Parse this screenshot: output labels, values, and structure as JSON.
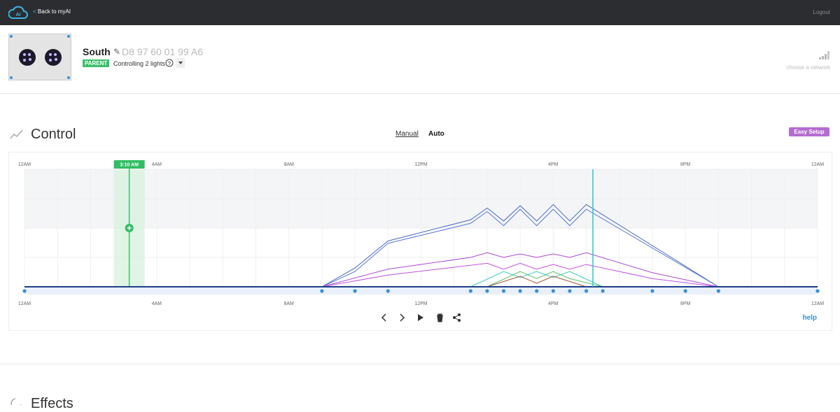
{
  "header": {
    "back": "Back to myAI",
    "logout": "Logout"
  },
  "device": {
    "name": "South",
    "id": "D8 97 60 01 99 A6",
    "badge": "PARENT",
    "status": "Controlling 2 lights",
    "network": "choose a network"
  },
  "control": {
    "title": "Control",
    "modes": [
      "Manual",
      "Auto"
    ],
    "easy_setup": "Easy Setup",
    "help": "help"
  },
  "chart_data": {
    "type": "line",
    "xlim": [
      0,
      24
    ],
    "ylim": [
      0,
      100
    ],
    "xticks": [
      {
        "value": 0,
        "label": "12AM"
      },
      {
        "value": 4,
        "label": "4AM"
      },
      {
        "value": 8,
        "label": "8AM"
      },
      {
        "value": 12,
        "label": "12PM"
      },
      {
        "value": 16,
        "label": "4PM"
      },
      {
        "value": 20,
        "label": "8PM"
      },
      {
        "value": 24,
        "label": "12AM"
      }
    ],
    "yticks": [
      0,
      25,
      50,
      75,
      100
    ],
    "grid": true,
    "selected": {
      "value": 3.17,
      "label": "3:10 AM"
    },
    "now": 17.2,
    "keyframes": [
      0,
      9,
      10,
      11,
      13.5,
      14,
      14.5,
      15,
      15.5,
      16,
      16.5,
      17,
      17.5,
      19,
      20,
      21,
      24
    ],
    "series": [
      {
        "color": "#4a67c9",
        "x": [
          0,
          9,
          10,
          11,
          13.5,
          14,
          14.5,
          15,
          15.5,
          16,
          16.5,
          17,
          21,
          24
        ],
        "values": [
          0,
          0,
          16,
          39,
          57,
          67,
          56,
          69,
          56,
          70,
          56,
          70,
          0,
          0
        ]
      },
      {
        "color": "#5a7ad4",
        "x": [
          0,
          9,
          10,
          11,
          13.5,
          14,
          14.5,
          15,
          15.5,
          16,
          16.5,
          17,
          21,
          24
        ],
        "values": [
          0,
          0,
          13,
          37,
          54,
          64,
          52,
          66,
          52,
          66,
          52,
          66,
          0,
          0
        ]
      },
      {
        "color": "#a84ad4",
        "x": [
          0,
          9,
          11,
          13.5,
          14,
          14.5,
          15,
          15.5,
          16,
          16.5,
          17,
          19,
          21,
          24
        ],
        "values": [
          0,
          0,
          15,
          25,
          29,
          25,
          28,
          25,
          28,
          25,
          29,
          12,
          0,
          0
        ]
      },
      {
        "color": "#c050e0",
        "x": [
          0,
          9,
          11,
          14,
          14.5,
          15,
          15.5,
          16,
          16.5,
          17,
          19,
          21,
          24
        ],
        "values": [
          0,
          0,
          10,
          20,
          15,
          20,
          15,
          19,
          15,
          19,
          7,
          0,
          0
        ]
      },
      {
        "color": "#3cc8c0",
        "x": [
          0,
          13.5,
          14.5,
          15,
          15.5,
          16,
          16.5,
          17.5,
          24
        ],
        "values": [
          0,
          0,
          13,
          8,
          13,
          8,
          13,
          0,
          0
        ]
      },
      {
        "color": "#5cbf6a",
        "x": [
          0,
          14,
          15,
          15.5,
          16,
          16.5,
          17.5,
          24
        ],
        "values": [
          0,
          0,
          13,
          7,
          13,
          7,
          0,
          0
        ]
      },
      {
        "color": "#a0522d",
        "x": [
          0,
          14,
          15,
          15.5,
          16,
          17,
          24
        ],
        "values": [
          0,
          0,
          9,
          3,
          9,
          0,
          0
        ]
      }
    ]
  },
  "effects": {
    "title": "Effects"
  }
}
